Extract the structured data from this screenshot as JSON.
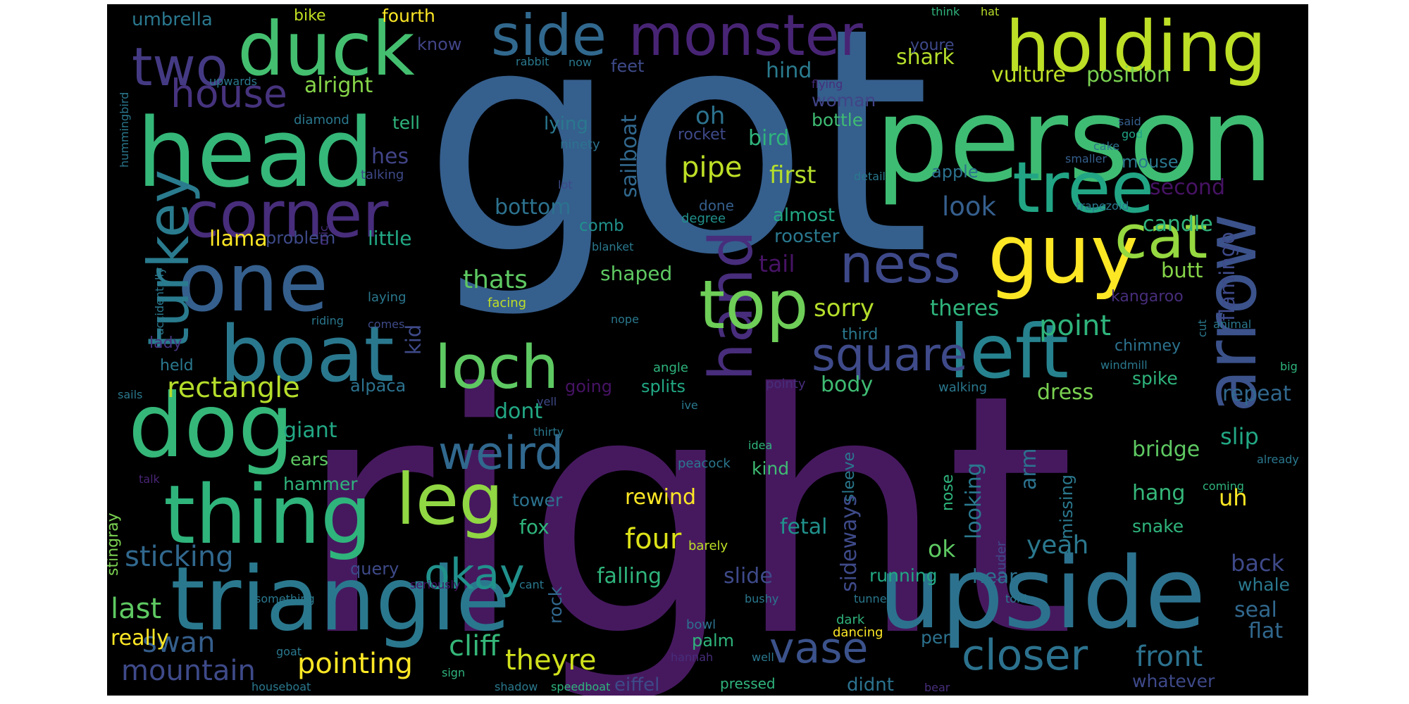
{
  "background": "#000000",
  "palette": [
    "#440154",
    "#482475",
    "#414487",
    "#355f8d",
    "#2a788e",
    "#21918c",
    "#22a884",
    "#44bf70",
    "#7ad151",
    "#bddf26",
    "#fde725"
  ],
  "words": [
    {
      "text": "got",
      "color": "#355f8d"
    },
    {
      "text": "right",
      "color": "#46195f"
    },
    {
      "text": "person",
      "color": "#3fbc73"
    },
    {
      "text": "head",
      "color": "#35b779"
    },
    {
      "text": "triangle",
      "color": "#2a788e"
    },
    {
      "text": "upside",
      "color": "#2c728e"
    },
    {
      "text": "duck",
      "color": "#44bf70"
    },
    {
      "text": "holding",
      "color": "#bddf26"
    },
    {
      "text": "monster",
      "color": "#482475"
    },
    {
      "text": "side",
      "color": "#31688e"
    },
    {
      "text": "one",
      "color": "#355f8d"
    },
    {
      "text": "dog",
      "color": "#35b779"
    },
    {
      "text": "boat",
      "color": "#2a788e"
    },
    {
      "text": "guy",
      "color": "#fde725"
    },
    {
      "text": "thing",
      "color": "#2fb47c"
    },
    {
      "text": "tree",
      "color": "#21a585"
    },
    {
      "text": "arrow",
      "color": "#3b528b"
    },
    {
      "text": "hand",
      "color": "#472d7b"
    },
    {
      "text": "corner",
      "color": "#472d7b"
    },
    {
      "text": "left",
      "color": "#26828e"
    },
    {
      "text": "leg",
      "color": "#90d743"
    },
    {
      "text": "cat",
      "color": "#95d840"
    },
    {
      "text": "two",
      "color": "#443a83"
    },
    {
      "text": "top",
      "color": "#6ece58"
    },
    {
      "text": "loch",
      "color": "#5ec962"
    },
    {
      "text": "ness",
      "color": "#3e4989"
    },
    {
      "text": "turkey",
      "color": "#2a7b8e"
    },
    {
      "text": "square",
      "color": "#3e4a89"
    },
    {
      "text": "weird",
      "color": "#31688e"
    },
    {
      "text": "okay",
      "color": "#21918c"
    },
    {
      "text": "vase",
      "color": "#3b528b"
    },
    {
      "text": "closer",
      "color": "#2c728e"
    },
    {
      "text": "house",
      "color": "#46337e"
    },
    {
      "text": "rectangle",
      "color": "#b5de2b"
    },
    {
      "text": "sticking",
      "color": "#31688e"
    },
    {
      "text": "mountain",
      "color": "#3e4a89"
    },
    {
      "text": "swan",
      "color": "#355f8d"
    },
    {
      "text": "pointing",
      "color": "#fde725"
    },
    {
      "text": "theyre",
      "color": "#d0e11c"
    },
    {
      "text": "cliff",
      "color": "#35b779"
    },
    {
      "text": "four",
      "color": "#dde318"
    },
    {
      "text": "front",
      "color": "#2c728e"
    },
    {
      "text": "whatever",
      "color": "#3e4989"
    },
    {
      "text": "last",
      "color": "#5ec962"
    },
    {
      "text": "really",
      "color": "#fde725"
    },
    {
      "text": "umbrella",
      "color": "#2a788e"
    },
    {
      "text": "bike",
      "color": "#c2df23"
    },
    {
      "text": "fourth",
      "color": "#fde725"
    },
    {
      "text": "think",
      "color": "#2fb47c"
    },
    {
      "text": "hat",
      "color": "#b8de29"
    },
    {
      "text": "shark",
      "color": "#b5de2b"
    },
    {
      "text": "youre",
      "color": "#3e4989"
    },
    {
      "text": "vulture",
      "color": "#bddf26"
    },
    {
      "text": "position",
      "color": "#7ad151"
    },
    {
      "text": "alright",
      "color": "#86d549"
    },
    {
      "text": "know",
      "color": "#414487"
    },
    {
      "text": "feet",
      "color": "#3e4a89"
    },
    {
      "text": "hind",
      "color": "#2a7b8e"
    },
    {
      "text": "flying",
      "color": "#472d7b"
    },
    {
      "text": "woman",
      "color": "#414487"
    },
    {
      "text": "bottle",
      "color": "#3fbc73"
    },
    {
      "text": "said",
      "color": "#355f8d"
    },
    {
      "text": "god",
      "color": "#20a486"
    },
    {
      "text": "cake",
      "color": "#2c728e"
    },
    {
      "text": "smaller",
      "color": "#355f8d"
    },
    {
      "text": "mouse",
      "color": "#2a788e"
    },
    {
      "text": "second",
      "color": "#471365"
    },
    {
      "text": "oh",
      "color": "#2c728e"
    },
    {
      "text": "rocket",
      "color": "#3e4a89"
    },
    {
      "text": "bird",
      "color": "#2fb47c"
    },
    {
      "text": "pipe",
      "color": "#bddf26"
    },
    {
      "text": "first",
      "color": "#b5de2b"
    },
    {
      "text": "apple",
      "color": "#2c728e"
    },
    {
      "text": "candle",
      "color": "#2fb47c"
    },
    {
      "text": "lying",
      "color": "#2a788e"
    },
    {
      "text": "ninety",
      "color": "#2c728e"
    },
    {
      "text": "sailboat",
      "color": "#31688e"
    },
    {
      "text": "hes",
      "color": "#414487"
    },
    {
      "text": "talking",
      "color": "#3e4a89"
    },
    {
      "text": "tell",
      "color": "#2fb47c"
    },
    {
      "text": "diamond",
      "color": "#2a788e"
    },
    {
      "text": "upwards",
      "color": "#2a788e"
    },
    {
      "text": "rabbit",
      "color": "#2a788e"
    },
    {
      "text": "now",
      "color": "#2a788e"
    },
    {
      "text": "hummingbird",
      "color": "#2a788e"
    },
    {
      "text": "bottom",
      "color": "#2c728e"
    },
    {
      "text": "lot",
      "color": "#3e4a89"
    },
    {
      "text": "detail",
      "color": "#2a788e"
    },
    {
      "text": "trapezoid",
      "color": "#2a788e"
    },
    {
      "text": "look",
      "color": "#355f8d"
    },
    {
      "text": "done",
      "color": "#355f8d"
    },
    {
      "text": "degree",
      "color": "#21918c"
    },
    {
      "text": "almost",
      "color": "#22a884"
    },
    {
      "text": "comb",
      "color": "#21918c"
    },
    {
      "text": "blanket",
      "color": "#2a788e"
    },
    {
      "text": "llama",
      "color": "#fde725"
    },
    {
      "text": "problem",
      "color": "#3e4a89"
    },
    {
      "text": "little",
      "color": "#22a884"
    },
    {
      "text": "rooster",
      "color": "#2a788e"
    },
    {
      "text": "tail",
      "color": "#471365"
    },
    {
      "text": "butt",
      "color": "#86d549"
    },
    {
      "text": "flamingo",
      "color": "#3e4a89"
    },
    {
      "text": "thats",
      "color": "#5ec962"
    },
    {
      "text": "shaped",
      "color": "#5ec962"
    },
    {
      "text": "kangaroo",
      "color": "#472d7b"
    },
    {
      "text": "laying",
      "color": "#2a788e"
    },
    {
      "text": "facing",
      "color": "#bddf26"
    },
    {
      "text": "comes",
      "color": "#3e4a89"
    },
    {
      "text": "accidentally",
      "color": "#2a788e"
    },
    {
      "text": "mic",
      "color": "#472d7b"
    },
    {
      "text": "riding",
      "color": "#2a788e"
    },
    {
      "text": "sorry",
      "color": "#b5de2b"
    },
    {
      "text": "theres",
      "color": "#2fb47c"
    },
    {
      "text": "point",
      "color": "#2fb47c"
    },
    {
      "text": "kid",
      "color": "#3e4a89"
    },
    {
      "text": "lady",
      "color": "#46337e"
    },
    {
      "text": "third",
      "color": "#2a788e"
    },
    {
      "text": "chimney",
      "color": "#2c728e"
    },
    {
      "text": "nope",
      "color": "#2a788e"
    },
    {
      "text": "animal",
      "color": "#2a788e"
    },
    {
      "text": "windmill",
      "color": "#2a788e"
    },
    {
      "text": "cut",
      "color": "#2a788e"
    },
    {
      "text": "big",
      "color": "#2fb47c"
    },
    {
      "text": "held",
      "color": "#2a788e"
    },
    {
      "text": "alpaca",
      "color": "#2c728e"
    },
    {
      "text": "going",
      "color": "#471365"
    },
    {
      "text": "splits",
      "color": "#22a884"
    },
    {
      "text": "angle",
      "color": "#2fb47c"
    },
    {
      "text": "pointy",
      "color": "#472d7b"
    },
    {
      "text": "body",
      "color": "#3fbc73"
    },
    {
      "text": "walking",
      "color": "#2a788e"
    },
    {
      "text": "dress",
      "color": "#7ad151"
    },
    {
      "text": "spike",
      "color": "#2fb47c"
    },
    {
      "text": "repeat",
      "color": "#31688e"
    },
    {
      "text": "sails",
      "color": "#2a788e"
    },
    {
      "text": "yell",
      "color": "#3e4a89"
    },
    {
      "text": "ive",
      "color": "#2a788e"
    },
    {
      "text": "dont",
      "color": "#22a884"
    },
    {
      "text": "giant",
      "color": "#22a884"
    },
    {
      "text": "thirty",
      "color": "#2a788e"
    },
    {
      "text": "ears",
      "color": "#5ec962"
    },
    {
      "text": "hammer",
      "color": "#2fb47c"
    },
    {
      "text": "stingray",
      "color": "#7ad151"
    },
    {
      "text": "talk",
      "color": "#482475"
    },
    {
      "text": "tower",
      "color": "#2c728e"
    },
    {
      "text": "fox",
      "color": "#2fb47c"
    },
    {
      "text": "rewind",
      "color": "#fde725"
    },
    {
      "text": "idea",
      "color": "#2fb47c"
    },
    {
      "text": "peacock",
      "color": "#2a788e"
    },
    {
      "text": "kind",
      "color": "#3fbc73"
    },
    {
      "text": "sleeve",
      "color": "#2a788e"
    },
    {
      "text": "sideways",
      "color": "#3e4a89"
    },
    {
      "text": "nose",
      "color": "#2fb47c"
    },
    {
      "text": "looking",
      "color": "#2a788e"
    },
    {
      "text": "louder",
      "color": "#3e4a89"
    },
    {
      "text": "arm",
      "color": "#2c728e"
    },
    {
      "text": "missing",
      "color": "#2a788e"
    },
    {
      "text": "bridge",
      "color": "#5ec962"
    },
    {
      "text": "slip",
      "color": "#22a884"
    },
    {
      "text": "already",
      "color": "#2a788e"
    },
    {
      "text": "coming",
      "color": "#2fb47c"
    },
    {
      "text": "hang",
      "color": "#35b779"
    },
    {
      "text": "uh",
      "color": "#fde725"
    },
    {
      "text": "snake",
      "color": "#2fb47c"
    },
    {
      "text": "fetal",
      "color": "#21918c"
    },
    {
      "text": "ok",
      "color": "#5ec962"
    },
    {
      "text": "yeah",
      "color": "#2a788e"
    },
    {
      "text": "hear",
      "color": "#2c728e"
    },
    {
      "text": "running",
      "color": "#22a884"
    },
    {
      "text": "back",
      "color": "#3e4a89"
    },
    {
      "text": "whale",
      "color": "#2a788e"
    },
    {
      "text": "seal",
      "color": "#31688e"
    },
    {
      "text": "flat",
      "color": "#31688e"
    },
    {
      "text": "falling",
      "color": "#2fb47c"
    },
    {
      "text": "slide",
      "color": "#3e4a89"
    },
    {
      "text": "query",
      "color": "#3e4a89"
    },
    {
      "text": "seriously",
      "color": "#471365"
    },
    {
      "text": "cant",
      "color": "#2a788e"
    },
    {
      "text": "barely",
      "color": "#bddf26"
    },
    {
      "text": "told",
      "color": "#2a788e"
    },
    {
      "text": "rock",
      "color": "#31688e"
    },
    {
      "text": "bushy",
      "color": "#2a788e"
    },
    {
      "text": "tunnel",
      "color": "#2a788e"
    },
    {
      "text": "something",
      "color": "#2a788e"
    },
    {
      "text": "bowl",
      "color": "#2c728e"
    },
    {
      "text": "palm",
      "color": "#2fb47c"
    },
    {
      "text": "dark",
      "color": "#2fb47c"
    },
    {
      "text": "hannah",
      "color": "#472d7b"
    },
    {
      "text": "well",
      "color": "#2a788e"
    },
    {
      "text": "dancing",
      "color": "#fde725"
    },
    {
      "text": "per",
      "color": "#2c728e"
    },
    {
      "text": "goat",
      "color": "#2a788e"
    },
    {
      "text": "sign",
      "color": "#2fb47c"
    },
    {
      "text": "houseboat",
      "color": "#2a788e"
    },
    {
      "text": "shadow",
      "color": "#2a788e"
    },
    {
      "text": "speedboat",
      "color": "#2fb47c"
    },
    {
      "text": "eiffel",
      "color": "#3e4a89"
    },
    {
      "text": "pressed",
      "color": "#2fb47c"
    },
    {
      "text": "didnt",
      "color": "#2c728e"
    },
    {
      "text": "bear",
      "color": "#472d7b"
    }
  ]
}
